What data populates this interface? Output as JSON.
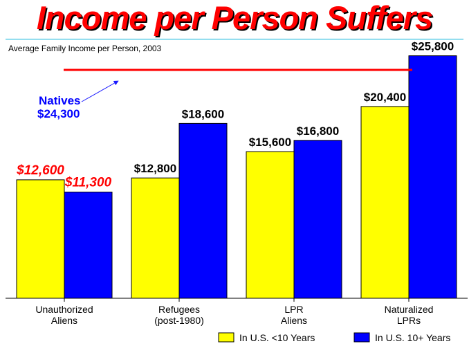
{
  "title": "Income per Person Suffers",
  "chart_data": {
    "type": "bar",
    "subtitle": "Average Family Income per Person, 2003",
    "categories": [
      [
        "Unauthorized",
        "Aliens"
      ],
      [
        "Refugees",
        "(post-1980)"
      ],
      [
        "LPR",
        "Aliens"
      ],
      [
        "Naturalized",
        "LPRs"
      ]
    ],
    "series": [
      {
        "name": "In U.S. <10 Years",
        "color": "#ffff00",
        "values": [
          12600,
          12800,
          15600,
          20400
        ],
        "labels": [
          "$12,600",
          "$12,800",
          "$15,600",
          "$20,400"
        ]
      },
      {
        "name": "In U.S. 10+ Years",
        "color": "#0000ff",
        "values": [
          11300,
          18600,
          16800,
          25800
        ],
        "labels": [
          "$11,300",
          "$18,600",
          "$16,800",
          "$25,800"
        ]
      }
    ],
    "highlight_label_color": "#ff0000",
    "highlight_category_index": 0,
    "reference_line": {
      "label_line1": "Natives",
      "label_line2": "$24,300",
      "value": 24300,
      "color": "#ff0000",
      "label_color": "#0000ff"
    },
    "ylim": [
      0,
      26800
    ],
    "grid": false,
    "legend_position": "bottom-right"
  }
}
